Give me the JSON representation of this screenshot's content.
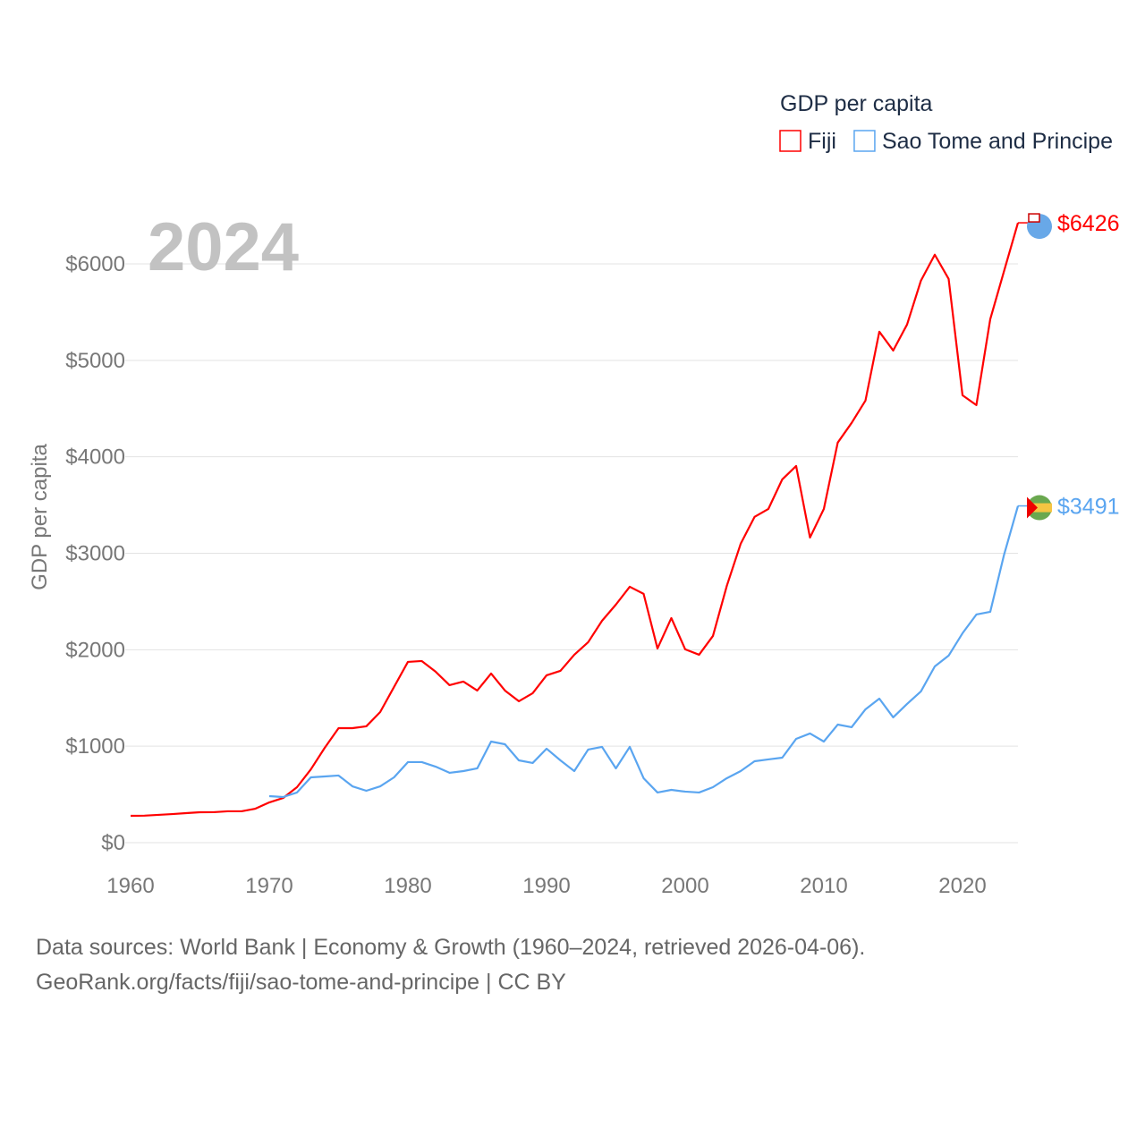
{
  "chart_data": {
    "type": "line",
    "title": "GDP per capita",
    "ylabel": "GDP per capita",
    "xlabel": "",
    "year_label": "2024",
    "xlim": [
      1960,
      2024
    ],
    "ylim": [
      0,
      6500
    ],
    "x_ticks": [
      "1960",
      "1970",
      "1980",
      "1990",
      "2000",
      "2010",
      "2020"
    ],
    "x_tick_values": [
      1960,
      1970,
      1980,
      1990,
      2000,
      2010,
      2020
    ],
    "y_ticks": [
      "$0",
      "$1000",
      "$2000",
      "$3000",
      "$4000",
      "$5000",
      "$6000"
    ],
    "y_tick_values": [
      0,
      1000,
      2000,
      3000,
      4000,
      5000,
      6000
    ],
    "grid": true,
    "legend_placement": "top-right",
    "series": [
      {
        "name": "Fiji",
        "color": "#ff0000",
        "end_label": "$6426",
        "start_year": 1960,
        "values": [
          278,
          280,
          288,
          296,
          306,
          315,
          316,
          325,
          325,
          352,
          417,
          463,
          575,
          760,
          983,
          1187,
          1187,
          1206,
          1354,
          1614,
          1874,
          1883,
          1772,
          1633,
          1670,
          1577,
          1753,
          1577,
          1466,
          1549,
          1735,
          1781,
          1948,
          2078,
          2300,
          2468,
          2653,
          2579,
          2013,
          2328,
          2004,
          1948,
          2143,
          2662,
          3098,
          3377,
          3460,
          3766,
          3905,
          3163,
          3460,
          4147,
          4351,
          4583,
          5297,
          5102,
          5371,
          5826,
          6095,
          5844,
          4638,
          4536,
          5427,
          5928,
          6426
        ]
      },
      {
        "name": "Sao Tome and Principe",
        "color": "#5aa5f0",
        "end_label": "$3491",
        "start_year": 1970,
        "values": [
          482,
          473,
          520,
          677,
          686,
          696,
          584,
          538,
          584,
          677,
          835,
          835,
          788,
          724,
          742,
          770,
          1048,
          1020,
          853,
          826,
          974,
          853,
          742,
          965,
          993,
          770,
          993,
          668,
          520,
          547,
          529,
          520,
          575,
          668,
          742,
          844,
          863,
          881,
          1076,
          1132,
          1048,
          1224,
          1197,
          1382,
          1493,
          1299,
          1438,
          1568,
          1827,
          1939,
          2171,
          2365,
          2393,
          2987,
          3491
        ]
      }
    ]
  },
  "footer": {
    "line1": "Data sources: World Bank | Economy & Growth (1960–2024, retrieved 2026-04-06).",
    "line2": "GeoRank.org/facts/fiji/sao-tome-and-principe | CC BY"
  }
}
